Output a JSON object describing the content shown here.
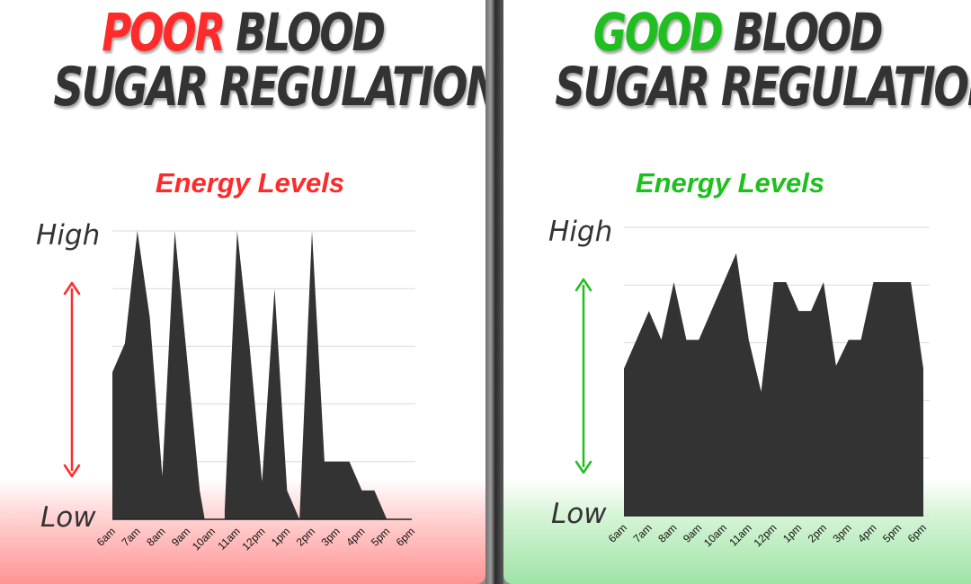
{
  "colors": {
    "poor_accent": "#ff2a2a",
    "good_accent": "#1fbf1f",
    "area_fill": "#333333",
    "heading_text": "#333333",
    "grid": "#d9d9d9"
  },
  "panels": [
    {
      "headline": {
        "accent_word": "POOR",
        "rest_line1": " BLOOD",
        "line2": "SUGAR REGULATION"
      },
      "accent_color": "#ff2a2a"
    },
    {
      "headline": {
        "accent_word": "GOOD",
        "rest_line1": " BLOOD",
        "line2": "SUGAR REGULATION"
      },
      "accent_color": "#1fbf1f"
    }
  ],
  "chart_data": [
    {
      "type": "area",
      "title": "Energy Levels",
      "ylabel_high": "High",
      "ylabel_low": "Low",
      "categories": [
        "6am",
        "7am",
        "8am",
        "9am",
        "10am",
        "11am",
        "12pm",
        "1pm",
        "2pm",
        "3pm",
        "4pm",
        "5pm",
        "6pm"
      ],
      "ylim": [
        0,
        100
      ],
      "grid": true,
      "series": [
        {
          "x": [
            0,
            0.5,
            1.0,
            1.5,
            2.0,
            2.5,
            3.0,
            3.5,
            3.7,
            4.0,
            4.5,
            4.5,
            5.0,
            5.5,
            6.0,
            6.5,
            7.0,
            7.5,
            7.5,
            8.0,
            8.5,
            9.0,
            9.5,
            10.0,
            10.5,
            11.0,
            11.5,
            12.0
          ],
          "values": [
            51,
            61,
            100,
            70,
            15,
            100,
            55,
            10,
            0,
            0,
            0,
            3,
            100,
            60,
            13,
            80,
            10,
            0,
            0,
            100,
            20,
            20,
            20,
            10,
            10,
            0,
            0,
            0
          ]
        }
      ]
    },
    {
      "type": "area",
      "title": "Energy Levels",
      "ylabel_high": "High",
      "ylabel_low": "Low",
      "categories": [
        "6am",
        "7am",
        "8am",
        "9am",
        "10am",
        "11am",
        "12pm",
        "1pm",
        "2pm",
        "3pm",
        "4pm",
        "5pm",
        "6pm"
      ],
      "ylim": [
        0,
        100
      ],
      "grid": true,
      "series": [
        {
          "x": [
            0,
            0.5,
            1.0,
            1.5,
            2.0,
            2.5,
            3.0,
            3.5,
            4.0,
            4.5,
            5.0,
            5.5,
            6.0,
            6.5,
            7.0,
            7.5,
            8.0,
            8.5,
            9.0,
            9.5,
            10.0,
            10.5,
            11.0,
            11.5,
            12.0
          ],
          "values": [
            51,
            61,
            71,
            61,
            81,
            61,
            61,
            71,
            81,
            91,
            61,
            43,
            81,
            81,
            71,
            71,
            81,
            52,
            61,
            61,
            81,
            81,
            81,
            81,
            51
          ]
        }
      ]
    }
  ]
}
